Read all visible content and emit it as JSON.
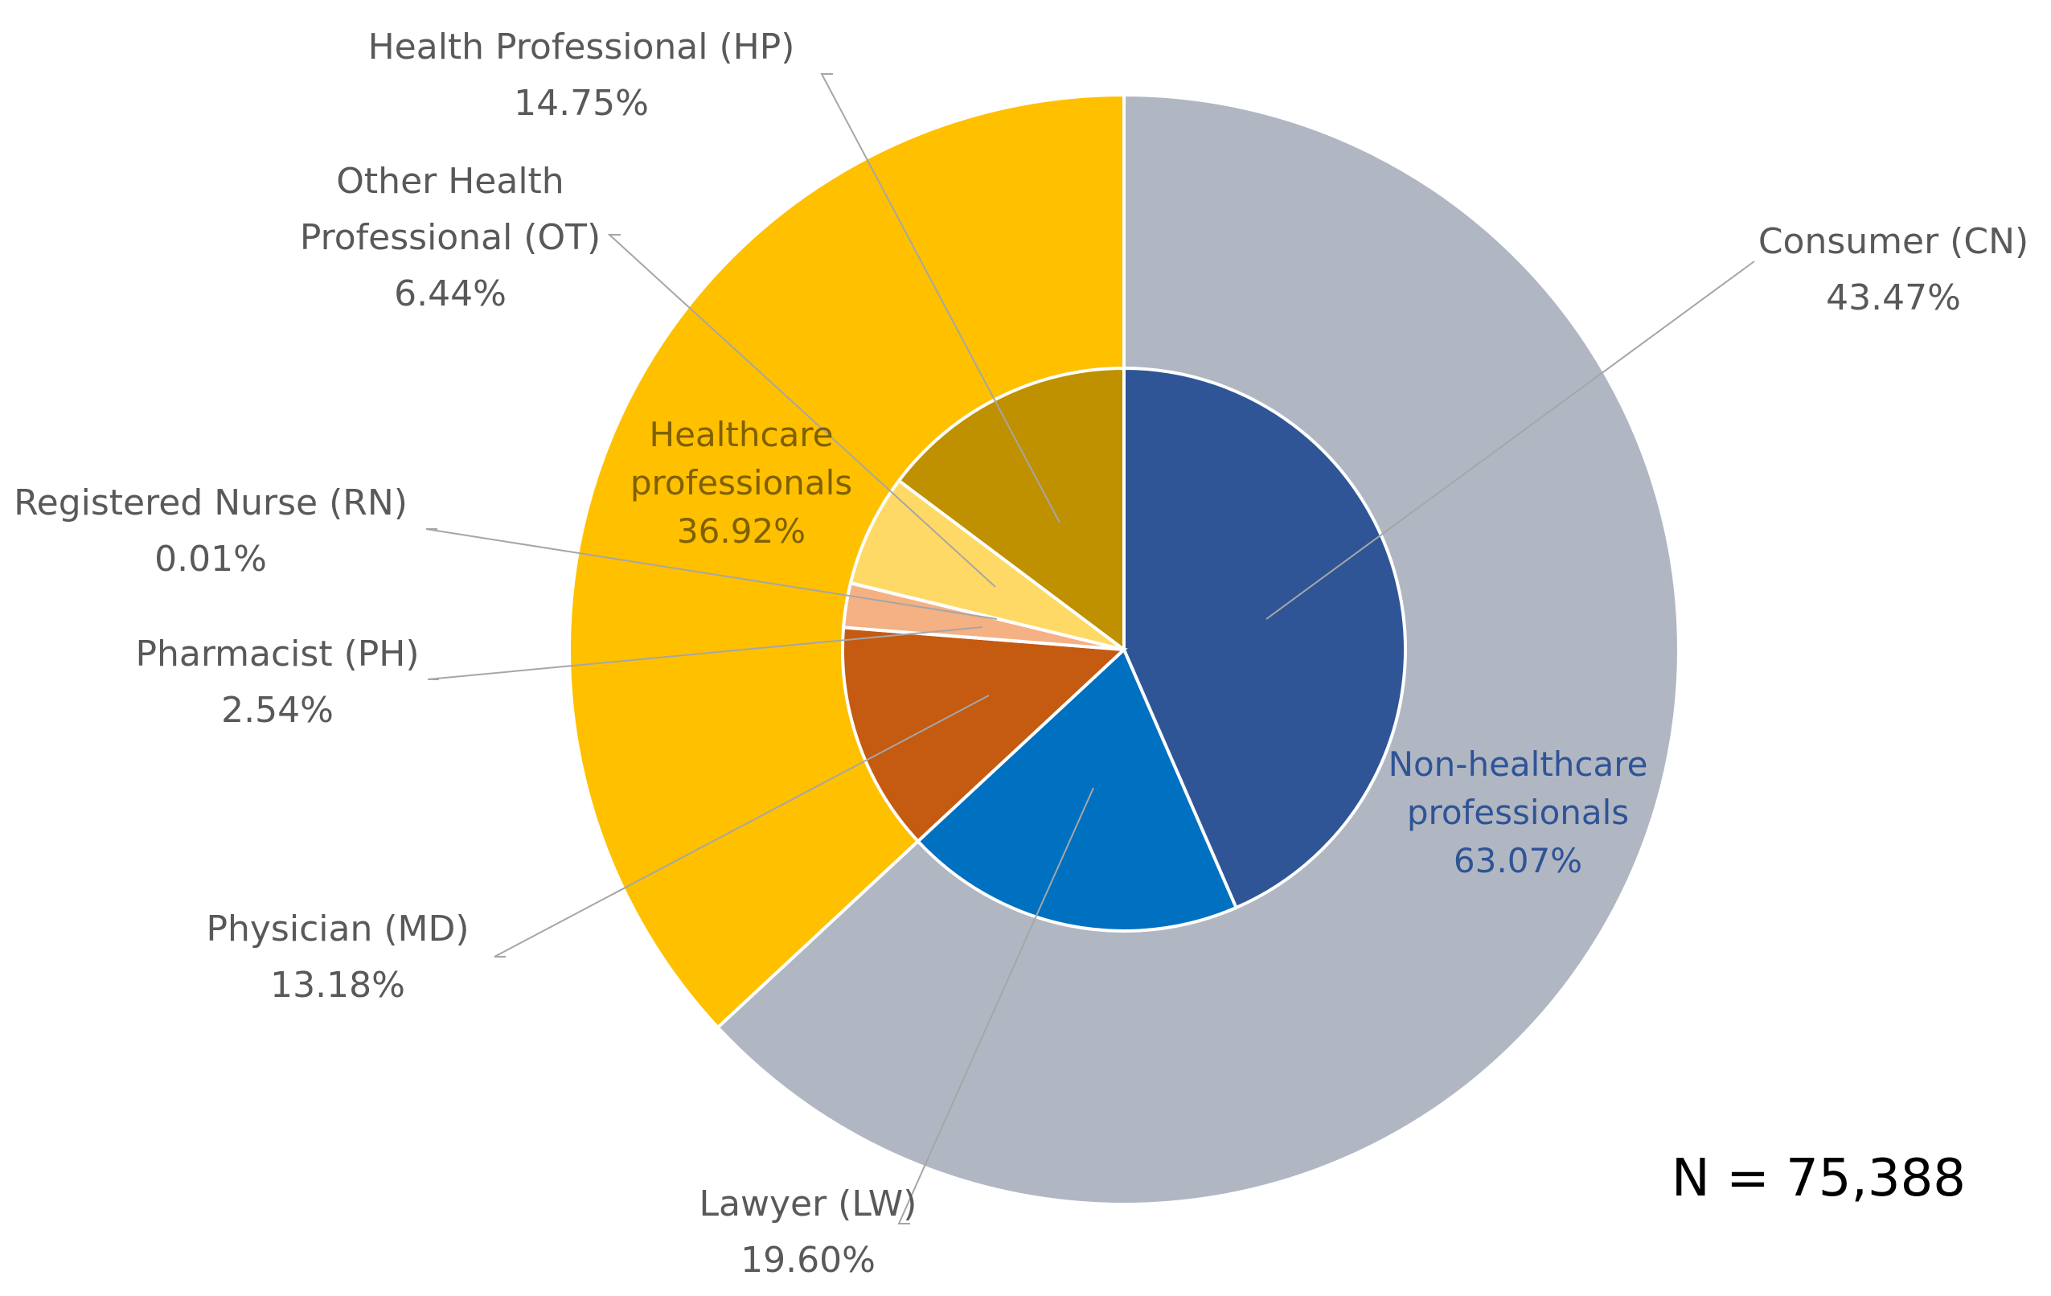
{
  "chart_data": {
    "type": "pie",
    "subtype": "nested-donut",
    "total_label": "N = 75,388",
    "outer_ring": [
      {
        "name": "Non-healthcare professionals",
        "value": 63.07,
        "value_label": "63.07%",
        "color": "#b0b7c3",
        "text_color": "#2f5496"
      },
      {
        "name": "Healthcare professionals",
        "value": 36.92,
        "value_label": "36.92%",
        "color": "#ffc000",
        "text_color": "#7f6000"
      }
    ],
    "inner_ring": [
      {
        "name": "Consumer (CN)",
        "value": 43.47,
        "value_label": "43.47%",
        "color": "#2f5597",
        "group": "Non-healthcare professionals"
      },
      {
        "name": "Lawyer (LW)",
        "value": 19.6,
        "value_label": "19.60%",
        "color": "#0070c0",
        "group": "Non-healthcare professionals"
      },
      {
        "name": "Physician (MD)",
        "value": 13.18,
        "value_label": "13.18%",
        "color": "#c55a11",
        "group": "Healthcare professionals"
      },
      {
        "name": "Pharmacist (PH)",
        "value": 2.54,
        "value_label": "2.54%",
        "color": "#f4b183",
        "group": "Healthcare professionals"
      },
      {
        "name": "Registered Nurse (RN)",
        "value": 0.01,
        "value_label": "0.01%",
        "color": "#fbe5d6",
        "group": "Healthcare professionals"
      },
      {
        "name": "Other Health Professional (OT)",
        "value": 6.44,
        "value_label": "6.44%",
        "color": "#ffd966",
        "group": "Healthcare professionals"
      },
      {
        "name": "Health Professional (HP)",
        "value": 14.75,
        "value_label": "14.75%",
        "color": "#bf9000",
        "group": "Healthcare professionals"
      }
    ]
  }
}
